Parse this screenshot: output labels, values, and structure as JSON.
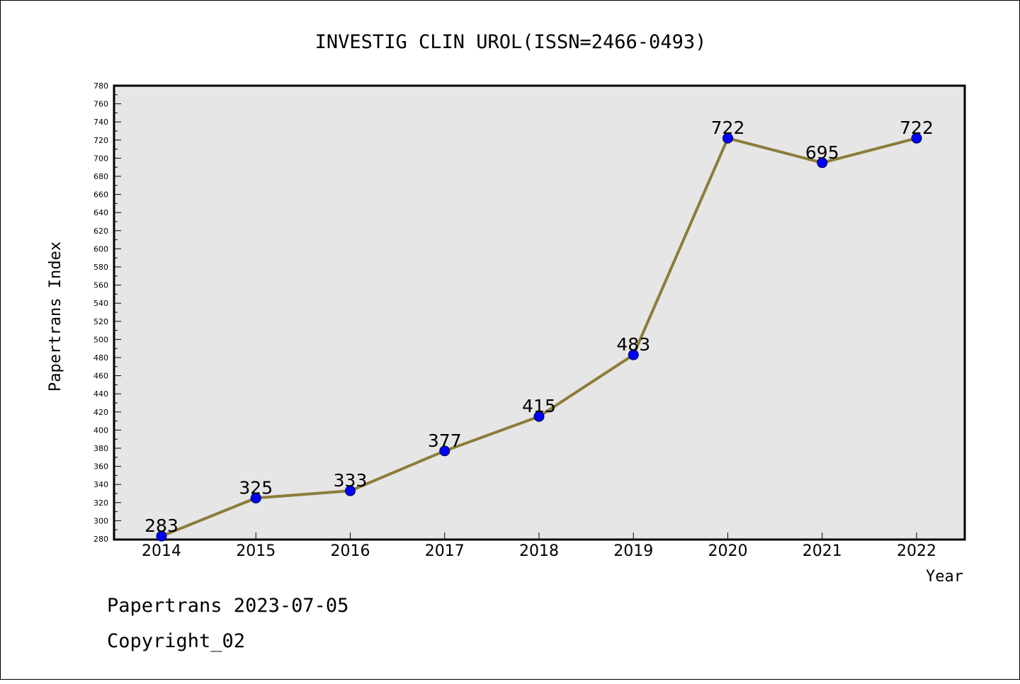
{
  "chart_data": {
    "type": "line",
    "title": "INVESTIG CLIN UROL(ISSN=2466-0493)",
    "xlabel": "Year",
    "ylabel": "Papertrans Index",
    "categories": [
      "2014",
      "2015",
      "2016",
      "2017",
      "2018",
      "2019",
      "2020",
      "2021",
      "2022"
    ],
    "values": [
      283,
      325,
      333,
      377,
      415,
      483,
      722,
      695,
      722
    ],
    "ylim": [
      280,
      780
    ],
    "ytick_step": 20,
    "grid": false,
    "line_color": "#8b7d3a",
    "marker_color": "#0000ff",
    "plot_background": "#e6e6e6"
  },
  "footer": {
    "line1": "Papertrans 2023-07-05",
    "line2": "Copyright_02"
  }
}
